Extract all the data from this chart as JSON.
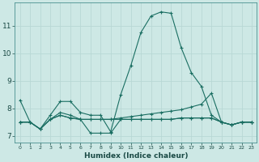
{
  "xlabel": "Humidex (Indice chaleur)",
  "background_color": "#cde8e5",
  "grid_color": "#b8d8d5",
  "line_color": "#1a6e62",
  "xlim": [
    -0.5,
    23.5
  ],
  "ylim": [
    6.75,
    11.85
  ],
  "xticks": [
    0,
    1,
    2,
    3,
    4,
    5,
    6,
    7,
    8,
    9,
    10,
    11,
    12,
    13,
    14,
    15,
    16,
    17,
    18,
    19,
    20,
    21,
    22,
    23
  ],
  "yticks": [
    7,
    8,
    9,
    10,
    11
  ],
  "lines": [
    [
      8.3,
      7.5,
      7.25,
      7.75,
      8.25,
      8.25,
      7.85,
      7.75,
      7.75,
      7.15,
      8.5,
      9.55,
      10.75,
      11.35,
      11.5,
      11.45,
      10.2,
      9.3,
      8.8,
      7.75,
      7.5,
      7.4,
      7.5,
      7.5
    ],
    [
      7.5,
      7.5,
      7.25,
      7.6,
      7.85,
      7.75,
      7.6,
      7.6,
      7.6,
      7.6,
      7.65,
      7.7,
      7.75,
      7.8,
      7.85,
      7.9,
      7.95,
      8.05,
      8.15,
      8.55,
      7.5,
      7.4,
      7.5,
      7.5
    ],
    [
      7.5,
      7.5,
      7.25,
      7.6,
      7.75,
      7.65,
      7.6,
      7.6,
      7.6,
      7.6,
      7.6,
      7.6,
      7.6,
      7.6,
      7.6,
      7.6,
      7.65,
      7.65,
      7.65,
      7.65,
      7.5,
      7.4,
      7.5,
      7.5
    ],
    [
      7.5,
      7.5,
      7.25,
      7.6,
      7.75,
      7.65,
      7.6,
      7.1,
      7.1,
      7.1,
      7.6,
      7.6,
      7.6,
      7.6,
      7.6,
      7.6,
      7.65,
      7.65,
      7.65,
      7.65,
      7.5,
      7.4,
      7.5,
      7.5
    ]
  ]
}
